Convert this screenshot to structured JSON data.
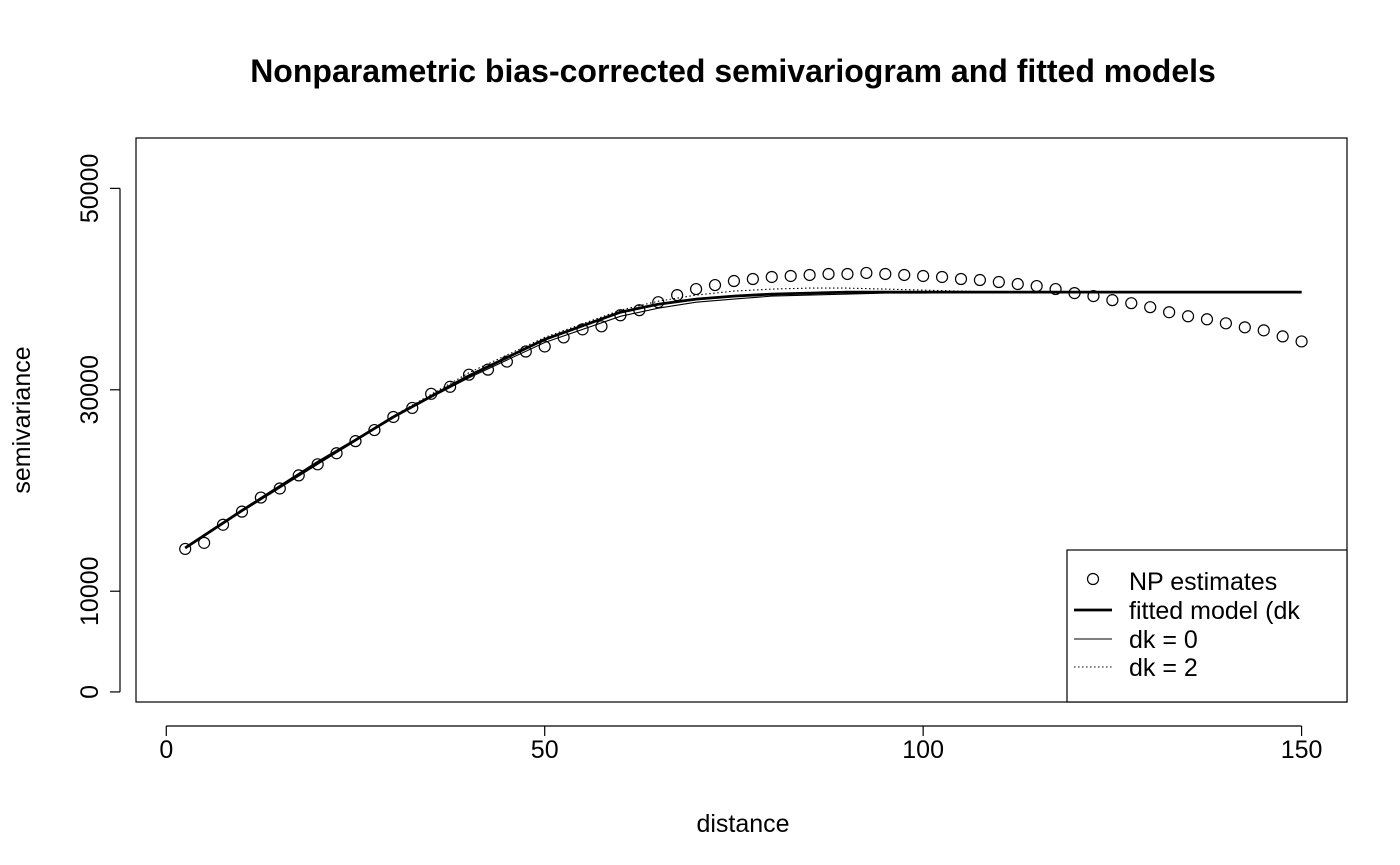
{
  "chart_data": {
    "type": "scatter",
    "title": "Nonparametric bias-corrected semivariogram and fitted models",
    "xlabel": "distance",
    "ylabel": "semivariance",
    "xlim": [
      -4,
      156
    ],
    "ylim": [
      -1000,
      55000
    ],
    "xticks": [
      0,
      50,
      100,
      150
    ],
    "yticks": [
      0,
      10000,
      30000,
      50000
    ],
    "xtick_labels": [
      "0",
      "50",
      "100",
      "150"
    ],
    "ytick_labels": [
      "0",
      "10000",
      "30000",
      "50000"
    ],
    "grid": false,
    "legend_position": "bottom-right",
    "legend": [
      {
        "label": "NP estimates",
        "style": "circle"
      },
      {
        "label": "fitted model (dk",
        "style": "thick-line"
      },
      {
        "label": "dk = 0",
        "style": "thin-line"
      },
      {
        "label": "dk = 2",
        "style": "dotted-line"
      }
    ],
    "points": {
      "name": "NP estimates",
      "x": [
        2.5,
        5,
        7.5,
        10,
        12.5,
        15,
        17.5,
        20,
        22.5,
        25,
        27.5,
        30,
        32.5,
        35,
        37.5,
        40,
        42.5,
        45,
        47.5,
        50,
        52.5,
        55,
        57.5,
        60,
        62.5,
        65,
        67.5,
        70,
        72.5,
        75,
        77.5,
        80,
        82.5,
        85,
        87.5,
        90,
        92.5,
        95,
        97.5,
        100,
        102.5,
        105,
        107.5,
        110,
        112.5,
        115,
        117.5,
        120,
        122.5,
        125,
        127.5,
        130,
        132.5,
        135,
        137.5,
        140,
        142.5,
        145,
        147.5,
        150
      ],
      "y": [
        14200,
        14800,
        16600,
        17900,
        19300,
        20200,
        21500,
        22600,
        23700,
        24900,
        26000,
        27300,
        28200,
        29600,
        30300,
        31500,
        32000,
        32800,
        33800,
        34300,
        35200,
        36000,
        36300,
        37400,
        37900,
        38700,
        39400,
        40000,
        40400,
        40800,
        41000,
        41200,
        41300,
        41400,
        41500,
        41500,
        41600,
        41500,
        41400,
        41300,
        41200,
        41000,
        40900,
        40700,
        40500,
        40300,
        40000,
        39600,
        39300,
        38900,
        38600,
        38200,
        37700,
        37300,
        37000,
        36600,
        36200,
        35900,
        35300,
        34800
      ]
    },
    "series": [
      {
        "style": "thick",
        "x": [
          2.5,
          10,
          20,
          30,
          40,
          50,
          60,
          65,
          70,
          75,
          80,
          85,
          90,
          95,
          100,
          110,
          120,
          130,
          140,
          150
        ],
        "y": [
          14300,
          18000,
          22700,
          27300,
          31400,
          35000,
          37700,
          38500,
          39000,
          39300,
          39500,
          39600,
          39700,
          39700,
          39700,
          39700,
          39700,
          39700,
          39700,
          39700
        ]
      },
      {
        "style": "thin",
        "x": [
          2.5,
          10,
          20,
          30,
          40,
          50,
          60,
          65,
          70,
          75,
          80,
          85,
          90,
          95,
          100,
          110,
          120,
          130,
          140,
          150
        ],
        "y": [
          14300,
          18100,
          22900,
          27300,
          31200,
          34700,
          37300,
          38100,
          38700,
          39000,
          39300,
          39400,
          39500,
          39600,
          39600,
          39700,
          39700,
          39700,
          39700,
          39700
        ]
      },
      {
        "style": "dotted",
        "x": [
          2.5,
          10,
          20,
          30,
          40,
          50,
          60,
          65,
          70,
          75,
          80,
          85,
          90,
          95,
          100,
          110,
          120,
          130,
          140,
          150
        ],
        "y": [
          14300,
          18000,
          22600,
          27400,
          31700,
          35200,
          37900,
          38800,
          39400,
          39800,
          40000,
          40100,
          40100,
          40000,
          39900,
          39700,
          39700,
          39700,
          39700,
          39700
        ]
      }
    ]
  }
}
